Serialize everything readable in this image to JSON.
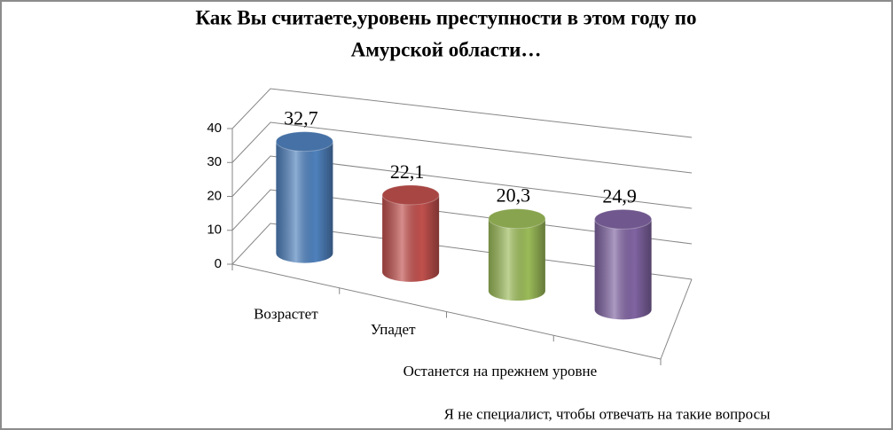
{
  "chart_data": {
    "type": "bar3d",
    "title": [
      "Как Вы считаете,уровень преступности в этом году по",
      "Амурской области…"
    ],
    "categories": [
      "Возрастет",
      "Упадет",
      "Останется на прежнем уровне",
      "Я не специалист, чтобы отвечать на такие вопросы"
    ],
    "values": [
      32.7,
      22.1,
      20.3,
      24.9
    ],
    "value_labels": [
      "32,7",
      "22,1",
      "20,3",
      "24,9"
    ],
    "colors": [
      "#4f81bd",
      "#c0504d",
      "#9bbb59",
      "#8064a2"
    ],
    "ylim": [
      0,
      40
    ],
    "yticks": [
      0,
      10,
      20,
      30,
      40
    ],
    "grid": true
  }
}
